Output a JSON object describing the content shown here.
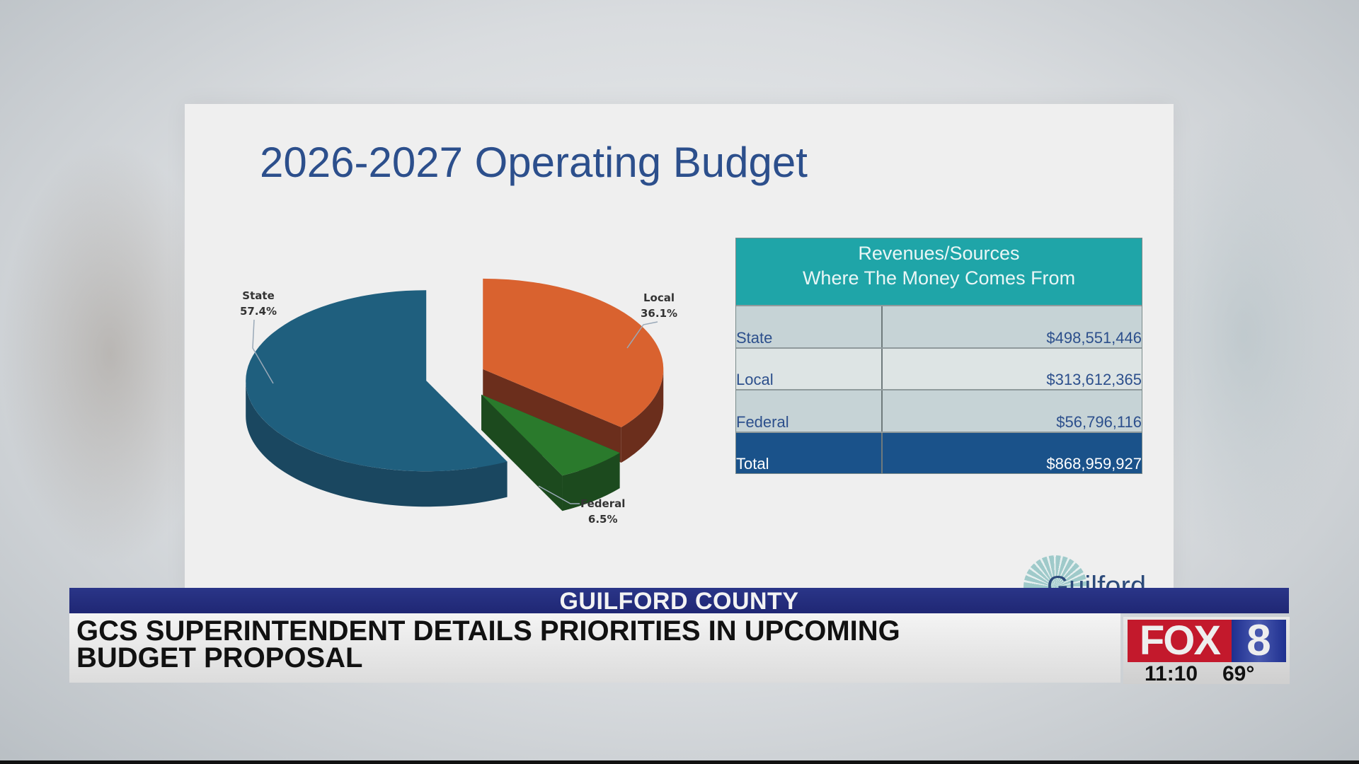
{
  "slide": {
    "title": "2026-2027 Operating Budget",
    "logo_text": "Guilford"
  },
  "chart_data": {
    "type": "pie",
    "style": "3d-exploded",
    "categories": [
      "State",
      "Local",
      "Federal"
    ],
    "values": [
      57.4,
      36.1,
      6.5
    ],
    "labels": [
      "57.4%",
      "36.1%",
      "6.5%"
    ],
    "colors": [
      "#1f5f7e",
      "#d9622f",
      "#2a7a2c"
    ],
    "title": ""
  },
  "table": {
    "header_line1": "Revenues/Sources",
    "header_line2": "Where The Money Comes From",
    "rows": [
      {
        "label": "State",
        "value": "$498,551,446"
      },
      {
        "label": "Local",
        "value": "$313,612,365"
      },
      {
        "label": "Federal",
        "value": "$56,796,116"
      }
    ],
    "total": {
      "label": "Total",
      "value": "$868,959,927"
    }
  },
  "lower_third": {
    "location": "GUILFORD COUNTY",
    "headline_line1": "GCS SUPERINTENDENT DETAILS PRIORITIES IN UPCOMING",
    "headline_line2": "BUDGET PROPOSAL"
  },
  "station": {
    "brand": "FOX",
    "channel": "8",
    "time": "11:10",
    "temperature": "69°"
  }
}
